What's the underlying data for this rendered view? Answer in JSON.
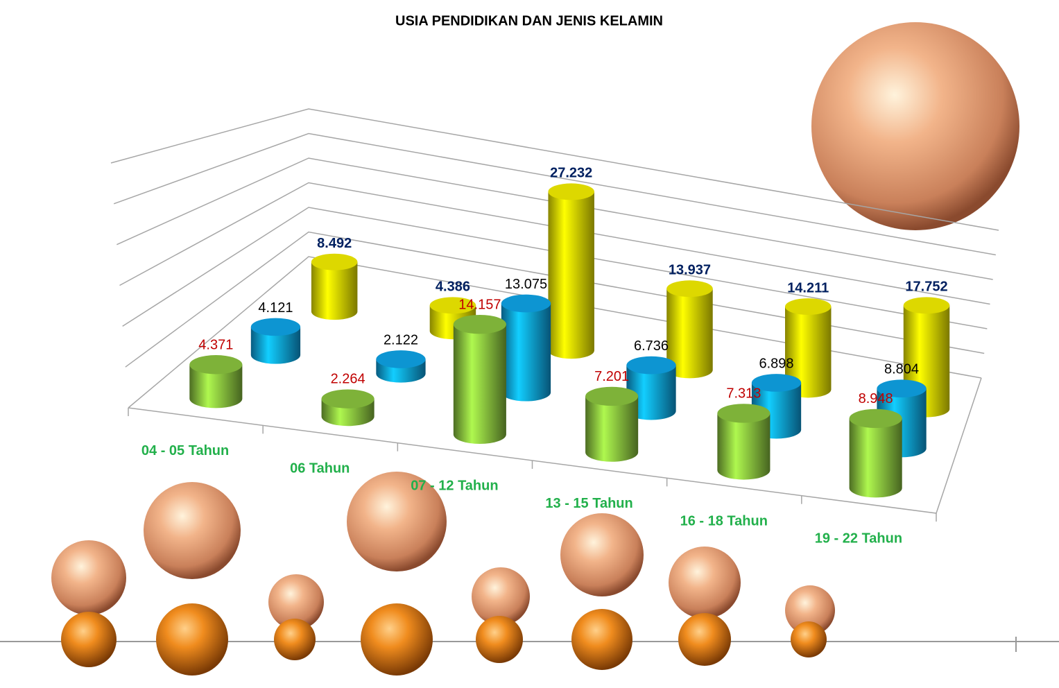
{
  "chart_data": {
    "type": "cylinder3d",
    "title": "USIA PENDIDIKAN DAN JENIS KELAMIN",
    "categories": [
      "04 - 05 Tahun",
      "06 Tahun",
      "07 - 12 Tahun",
      "13 - 15 Tahun",
      "16 - 18 Tahun",
      "19 - 22 Tahun"
    ],
    "series": [
      {
        "color": "#8cc63f",
        "label_color": "#c00000",
        "label_bold": false,
        "values": [
          4.371,
          2.264,
          14.157,
          7.201,
          7.313,
          8.948
        ]
      },
      {
        "color": "#0ea5e9",
        "label_color": "#000000",
        "label_bold": false,
        "values": [
          4.121,
          2.122,
          13.075,
          6.736,
          6.898,
          8.804
        ]
      },
      {
        "color": "#f5f000",
        "label_color": "#002060",
        "label_bold": true,
        "values": [
          8.492,
          4.386,
          27.232,
          13.937,
          14.211,
          17.752
        ]
      }
    ],
    "category_color": "#22b04b",
    "ylim": [
      0,
      30
    ],
    "yticks": [
      0,
      5,
      10,
      15,
      20,
      25,
      30
    ],
    "grid": true
  }
}
